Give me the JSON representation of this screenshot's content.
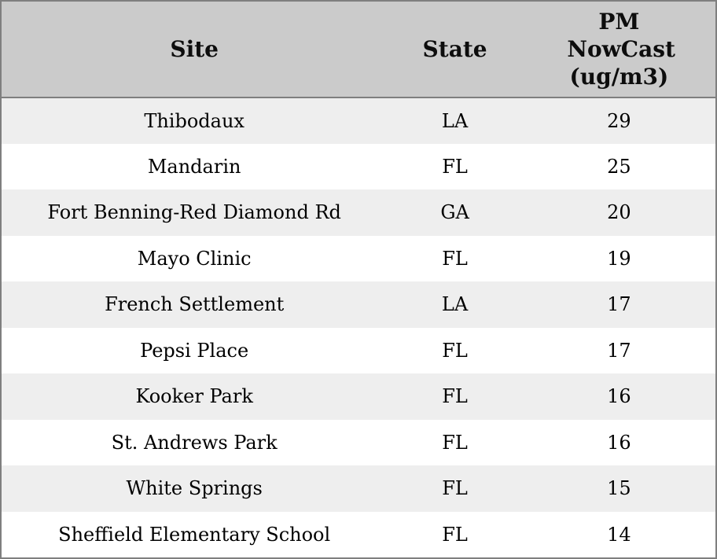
{
  "chart_data": {
    "type": "table",
    "title": "",
    "columns": [
      "Site",
      "State",
      "PM NowCast (ug/m3)"
    ],
    "rows": [
      [
        "Thibodaux",
        "LA",
        29
      ],
      [
        "Mandarin",
        "FL",
        25
      ],
      [
        "Fort Benning-Red Diamond Rd",
        "GA",
        20
      ],
      [
        "Mayo Clinic",
        "FL",
        19
      ],
      [
        "French Settlement",
        "LA",
        17
      ],
      [
        "Pepsi Place",
        "FL",
        17
      ],
      [
        "Kooker Park",
        "FL",
        16
      ],
      [
        "St. Andrews Park",
        "FL",
        16
      ],
      [
        "White Springs",
        "FL",
        15
      ],
      [
        "Sheffield Elementary School",
        "FL",
        14
      ]
    ],
    "layout": {
      "header_background": "#cbcbcb",
      "row_background": "#ffffff",
      "alt_row_background": "#eeeeee",
      "border_color": "#7f7f7f",
      "text_color": "#000000",
      "grid": "none",
      "alignment": "center"
    }
  }
}
